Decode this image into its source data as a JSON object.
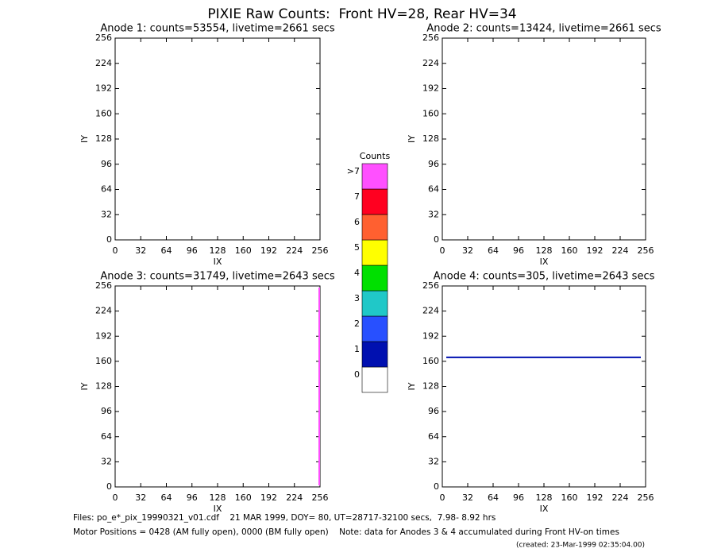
{
  "title": "PIXIE Raw Counts:  Front HV=28, Rear HV=34",
  "chart_data": [
    {
      "type": "heatmap",
      "title": "Anode 1: counts=53554, livetime=2661 secs",
      "xlabel": "IX",
      "ylabel": "IY",
      "xlim": [
        0,
        256
      ],
      "ylim": [
        0,
        256
      ],
      "xticks": [
        0,
        32,
        64,
        96,
        128,
        160,
        192,
        224,
        256
      ],
      "yticks": [
        0,
        32,
        64,
        96,
        128,
        160,
        192,
        224,
        256
      ]
    },
    {
      "type": "heatmap",
      "title": "Anode 2: counts=13424, livetime=2661 secs",
      "xlabel": "IX",
      "ylabel": "IY",
      "xlim": [
        0,
        256
      ],
      "ylim": [
        0,
        256
      ],
      "xticks": [
        0,
        32,
        64,
        96,
        128,
        160,
        192,
        224,
        256
      ],
      "yticks": [
        0,
        32,
        64,
        96,
        128,
        160,
        192,
        224,
        256
      ]
    },
    {
      "type": "heatmap",
      "title": "Anode 3: counts=31749, livetime=2643 secs",
      "xlabel": "IX",
      "ylabel": "IY",
      "xlim": [
        0,
        256
      ],
      "ylim": [
        0,
        256
      ],
      "xticks": [
        0,
        32,
        64,
        96,
        128,
        160,
        192,
        224,
        256
      ],
      "yticks": [
        0,
        32,
        64,
        96,
        128,
        160,
        192,
        224,
        256
      ],
      "series": [
        {
          "color": "#ff50ff",
          "x": [
            255,
            255
          ],
          "values": [
            2,
            254
          ]
        }
      ]
    },
    {
      "type": "heatmap",
      "title": "Anode 4: counts=305, livetime=2643 secs",
      "xlabel": "IX",
      "ylabel": "IY",
      "xlim": [
        0,
        256
      ],
      "ylim": [
        0,
        256
      ],
      "xticks": [
        0,
        32,
        64,
        96,
        128,
        160,
        192,
        224,
        256
      ],
      "yticks": [
        0,
        32,
        64,
        96,
        128,
        160,
        192,
        224,
        256
      ],
      "series": [
        {
          "color": "#0010b0",
          "x": [
            5,
            250
          ],
          "values": [
            165,
            165
          ]
        }
      ]
    }
  ],
  "colorbar": {
    "title": "Counts",
    "labels": [
      "0",
      "1",
      "2",
      "3",
      "4",
      "5",
      "6",
      "7",
      ">7"
    ],
    "colors": [
      "#ffffff",
      "#0010b0",
      "#2850ff",
      "#20c8c8",
      "#00e000",
      "#ffff00",
      "#ff6030",
      "#ff0020",
      "#ff50ff"
    ]
  },
  "footer": [
    "Files: po_e*_pix_19990321_v01.cdf    21 MAR 1999, DOY= 80, UT=28717-32100 secs,  7.98- 8.92 hrs",
    "Motor Positions = 0428 (AM fully open), 0000 (BM fully open)    Note: data for Anodes 3 & 4 accumulated during Front HV-on times",
    "(created: 23-Mar-1999 02:35:04.00)"
  ]
}
